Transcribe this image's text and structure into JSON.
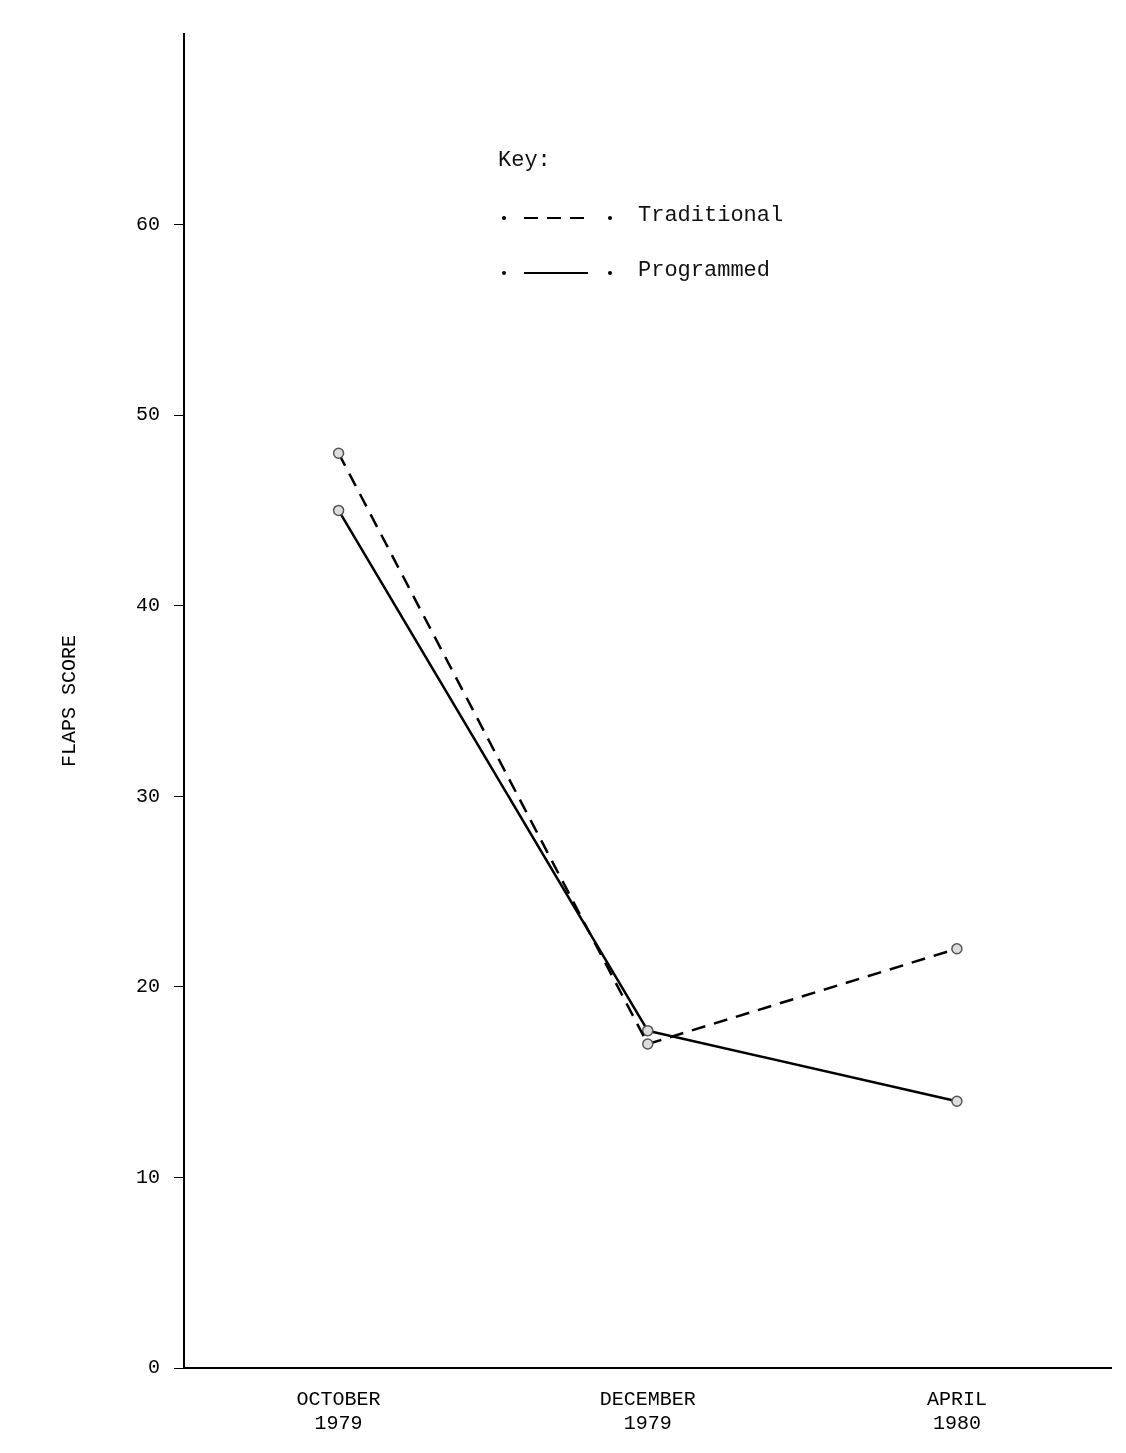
{
  "chart_data": {
    "type": "line",
    "ylabel": "FLAPS SCORE",
    "legend_title": "Key:",
    "categories": [
      "OCTOBER 1979",
      "DECEMBER 1979",
      "APRIL 1980"
    ],
    "series": [
      {
        "name": "Traditional",
        "color": "#000000",
        "line_style": "dashed",
        "values": [
          48,
          17,
          22
        ]
      },
      {
        "name": "Programmed",
        "color": "#000000",
        "line_style": "solid",
        "values": [
          45,
          17.7,
          14
        ]
      }
    ],
    "ylim": [
      0,
      70
    ],
    "yticks": [
      0,
      10,
      20,
      30,
      40,
      50,
      60
    ],
    "grid": false,
    "legend": "top",
    "marker": "circle"
  }
}
